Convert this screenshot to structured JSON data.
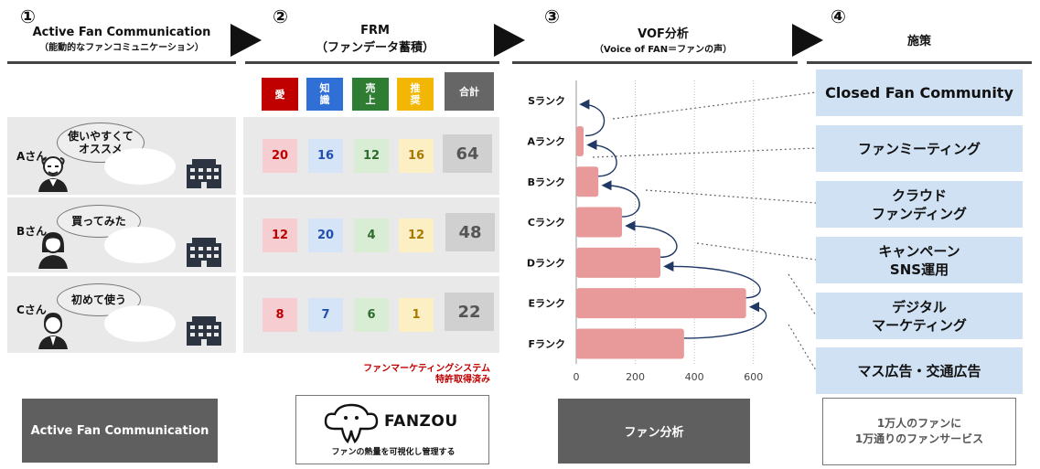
{
  "steps": [
    {
      "number": "①",
      "title": "Active Fan Communication",
      "subtitle": "（能動的なファンコミュニケーション）"
    },
    {
      "number": "②",
      "title": "FRM",
      "subtitle": "（ファンデータ蓄積）"
    },
    {
      "number": "③",
      "title": "VOF分析",
      "subtitle": "（Voice of FAN＝ファンの声）"
    },
    {
      "number": "④",
      "title": "施策",
      "subtitle": ""
    }
  ],
  "customers": [
    {
      "name": "Aさん",
      "comment_lines": [
        "使いやすくて",
        "オススメ"
      ],
      "scores": [
        "20",
        "16",
        "12",
        "16"
      ],
      "total": "64"
    },
    {
      "name": "Bさん",
      "comment_lines": [
        "買ってみた"
      ],
      "scores": [
        "12",
        "20",
        "4",
        "12"
      ],
      "total": "48"
    },
    {
      "name": "Cさん",
      "comment_lines": [
        "初めて使う"
      ],
      "scores": [
        "8",
        "7",
        "6",
        "1"
      ],
      "total": "22"
    }
  ],
  "frm_headers": {
    "categories": [
      {
        "l1": "愛",
        "l2": "",
        "bg": "#c00000",
        "cell_bg": "#f6cdd0",
        "cell_fg": "#c00000"
      },
      {
        "l1": "知",
        "l2": "識",
        "bg": "#2f6fd6",
        "cell_bg": "#d6e4f8",
        "cell_fg": "#2050b0"
      },
      {
        "l1": "売",
        "l2": "上",
        "bg": "#2e7d32",
        "cell_bg": "#d9ecd4",
        "cell_fg": "#2e6b2e"
      },
      {
        "l1": "推",
        "l2": "奨",
        "bg": "#f2b705",
        "cell_bg": "#fcefc4",
        "cell_fg": "#a87800"
      }
    ],
    "total_label": "合計"
  },
  "patent_note": {
    "line1": "ファンマーケティングシステム",
    "line2": "特許取得済み"
  },
  "bottom": {
    "afc_label": "Active Fan Communication",
    "fanzou_name": "FANZOU",
    "fanzou_caption": "ファンの熱量を可視化し管理する",
    "analysis_label": "ファン分析",
    "service_line1": "1万人のファンに",
    "service_line2": "1万通りのファンサービス"
  },
  "measures": [
    {
      "line1": "Closed Fan Community",
      "line2": ""
    },
    {
      "line1": "ファンミーティング",
      "line2": ""
    },
    {
      "line1": "クラウド",
      "line2": "ファンディング"
    },
    {
      "line1": "キャンペーン",
      "line2": "SNS運用"
    },
    {
      "line1": "デジタル",
      "line2": "マーケティング"
    },
    {
      "line1": "マス広告・交通広告",
      "line2": ""
    }
  ],
  "colors": {
    "bar": "#e89a9a",
    "arrow": "#1f3864",
    "measure_bg": "#cfe1f3",
    "dark_box": "#5f5f5f"
  },
  "chart_data": {
    "type": "bar",
    "orientation": "horizontal",
    "categories": [
      "Sランク",
      "Aランク",
      "Bランク",
      "Cランク",
      "Dランク",
      "Eランク",
      "Fランク"
    ],
    "values": [
      0,
      25,
      75,
      155,
      285,
      575,
      365
    ],
    "xlim": [
      0,
      700
    ],
    "xticks": [
      "0",
      "200",
      "400",
      "600"
    ],
    "grid": "vertical dotted"
  }
}
